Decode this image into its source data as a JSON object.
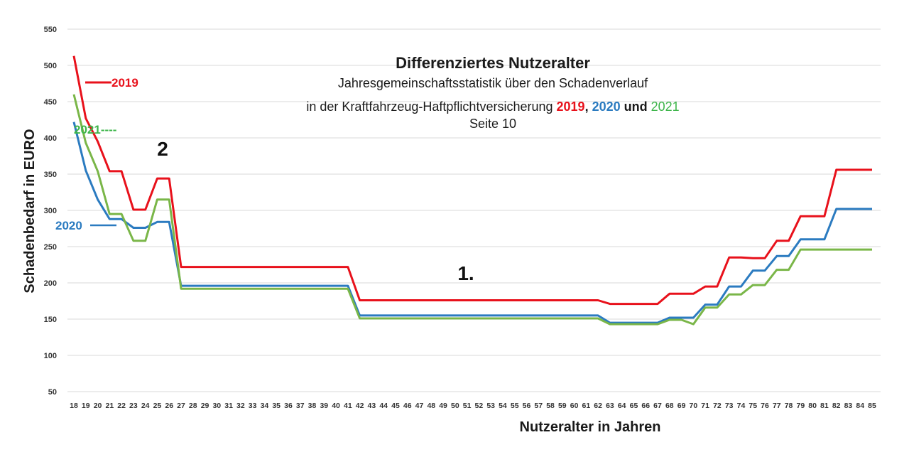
{
  "chart_data": {
    "type": "line",
    "title": "Differenziertes Nutzeralter",
    "subtitle_lines": [
      "Jahresgemeinschaftsstatistik über den Schadenverlauf",
      "in der Kraftfahrzeug-Haftpflichtversicherung",
      "Seite 10"
    ],
    "subtitle_years": [
      {
        "text": "2019",
        "color": "#e8111b"
      },
      {
        "text": ", ",
        "color": "#1a1a1a"
      },
      {
        "text": "2020",
        "color": "#2b7bc0"
      },
      {
        "text": " und ",
        "color": "#1a1a1a"
      },
      {
        "text": "2021",
        "color": "#3db54a"
      }
    ],
    "xlabel": "Nutzeralter in Jahren",
    "ylabel": "Schadenbedarf in EURO",
    "ylim": [
      50,
      550
    ],
    "yticks": [
      50,
      100,
      150,
      200,
      250,
      300,
      350,
      400,
      450,
      500,
      550
    ],
    "x": [
      18,
      19,
      20,
      21,
      22,
      23,
      24,
      25,
      26,
      27,
      28,
      29,
      30,
      31,
      32,
      33,
      34,
      35,
      36,
      37,
      38,
      39,
      40,
      41,
      42,
      43,
      44,
      45,
      46,
      47,
      48,
      49,
      50,
      51,
      52,
      53,
      54,
      55,
      56,
      57,
      58,
      59,
      60,
      61,
      62,
      63,
      64,
      65,
      66,
      67,
      68,
      69,
      70,
      71,
      72,
      73,
      74,
      75,
      76,
      77,
      78,
      79,
      80,
      81,
      82,
      83,
      84,
      85
    ],
    "grid": true,
    "series": [
      {
        "name": "2019",
        "color": "#e8111b",
        "values": [
          513,
          427,
          395,
          354,
          354,
          301,
          301,
          344,
          344,
          222,
          222,
          222,
          222,
          222,
          222,
          222,
          222,
          222,
          222,
          222,
          222,
          222,
          222,
          222,
          176,
          176,
          176,
          176,
          176,
          176,
          176,
          176,
          176,
          176,
          176,
          176,
          176,
          176,
          176,
          176,
          176,
          176,
          176,
          176,
          176,
          171,
          171,
          171,
          171,
          171,
          185,
          185,
          185,
          195,
          195,
          235,
          235,
          234,
          234,
          258,
          258,
          292,
          292,
          292,
          356,
          356,
          356,
          356
        ]
      },
      {
        "name": "2020",
        "color": "#2b7bc0",
        "values": [
          422,
          355,
          315,
          288,
          288,
          276,
          276,
          284,
          284,
          196,
          196,
          196,
          196,
          196,
          196,
          196,
          196,
          196,
          196,
          196,
          196,
          196,
          196,
          196,
          155,
          155,
          155,
          155,
          155,
          155,
          155,
          155,
          155,
          155,
          155,
          155,
          155,
          155,
          155,
          155,
          155,
          155,
          155,
          155,
          155,
          145,
          145,
          145,
          145,
          145,
          152,
          152,
          152,
          170,
          170,
          195,
          195,
          217,
          217,
          237,
          237,
          260,
          260,
          260,
          302,
          302,
          302,
          302
        ]
      },
      {
        "name": "2021",
        "color": "#7ab648",
        "values": [
          460,
          393,
          354,
          295,
          295,
          258,
          258,
          315,
          315,
          192,
          192,
          192,
          192,
          192,
          192,
          192,
          192,
          192,
          192,
          192,
          192,
          192,
          192,
          192,
          151,
          151,
          151,
          151,
          151,
          151,
          151,
          151,
          151,
          151,
          151,
          151,
          151,
          151,
          151,
          151,
          151,
          151,
          151,
          151,
          151,
          143,
          143,
          143,
          143,
          143,
          149,
          149,
          143,
          166,
          166,
          184,
          184,
          197,
          197,
          218,
          218,
          246,
          246,
          246,
          246,
          246,
          246,
          246
        ]
      }
    ],
    "annotations": [
      {
        "text": "2019",
        "color": "#e8111b"
      },
      {
        "text": "2021----",
        "color": "#3db54a"
      },
      {
        "text": "2020",
        "color": "#2b7bc0"
      },
      {
        "text": "2",
        "color": "#111111"
      },
      {
        "text": "1.",
        "color": "#111111"
      }
    ]
  }
}
